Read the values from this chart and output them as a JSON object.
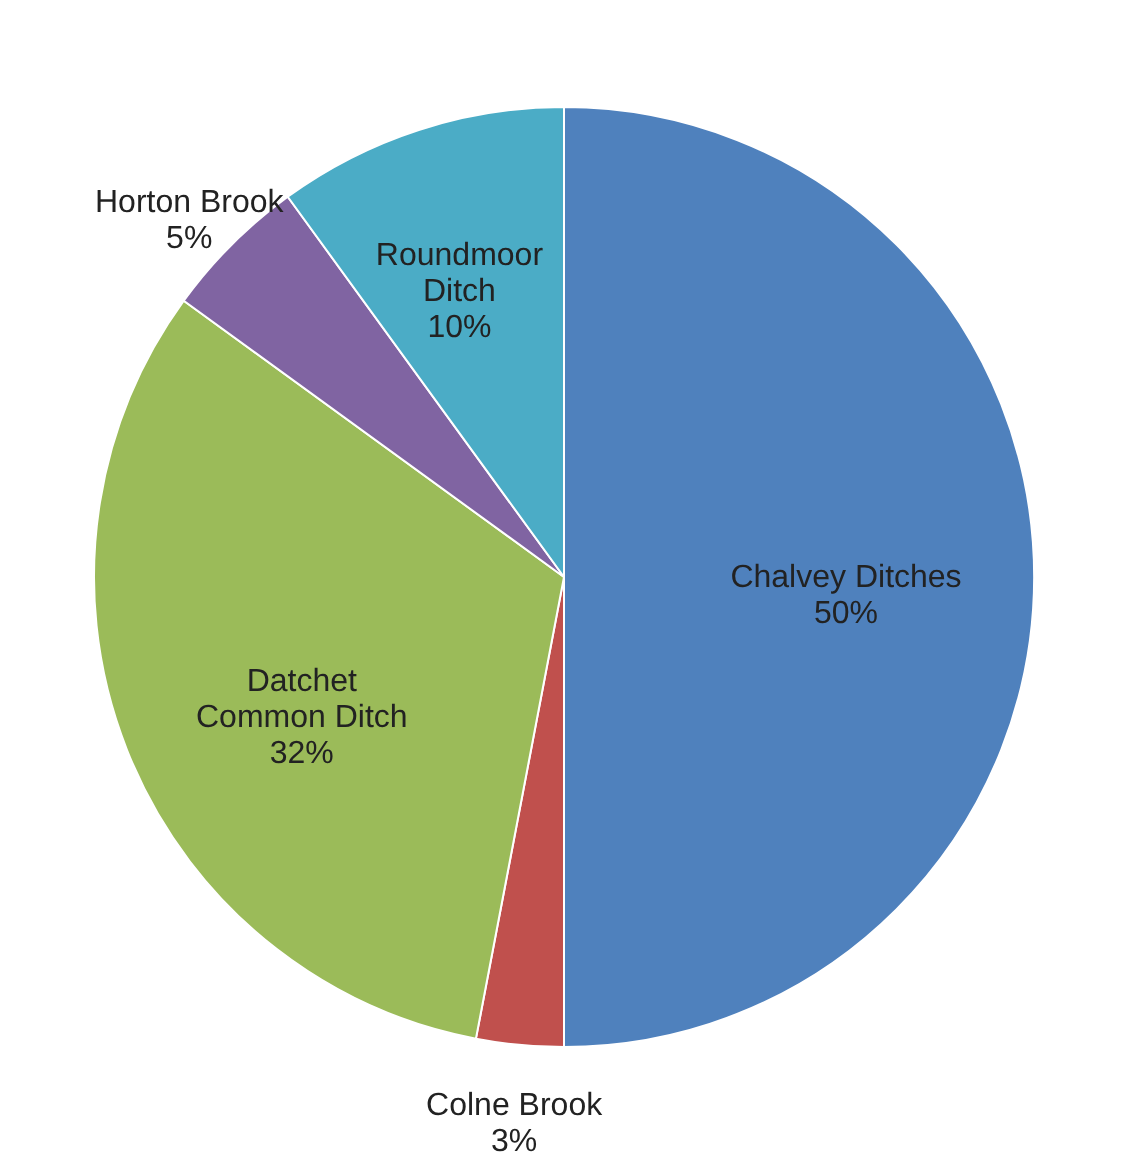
{
  "chart_data": {
    "type": "pie",
    "categories": [
      "Chalvey Ditches",
      "Colne Brook",
      "Datchet Common Ditch",
      "Horton Brook",
      "Roundmoor Ditch"
    ],
    "values": [
      50,
      3,
      32,
      5,
      10
    ],
    "colors": [
      "#4f81bd",
      "#c0504d",
      "#9bbb59",
      "#8064a2",
      "#4bacc6"
    ],
    "value_labels": [
      "50%",
      "3%",
      "32%",
      "5%",
      "10%"
    ]
  }
}
